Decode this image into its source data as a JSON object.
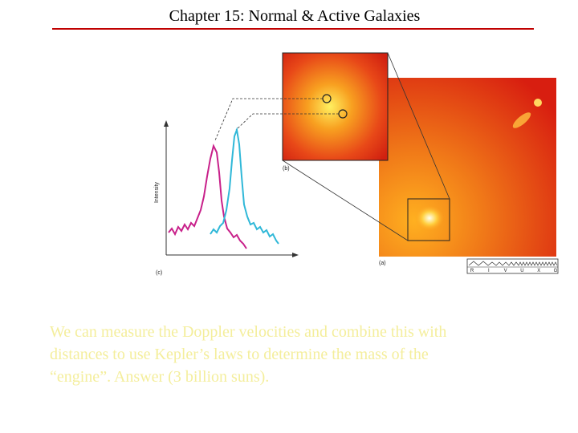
{
  "title": "Chapter 15: Normal & Active Galaxies",
  "figure": {
    "axis_label": "Intensity",
    "panel_c": "(c)",
    "panel_b": "(b)",
    "panel_a": "(a)",
    "spectrum_bands": [
      "R",
      "I",
      "V",
      "U",
      "X",
      "G"
    ]
  },
  "body": {
    "lines": [
      "We can measure the Doppler velocities and combine this with",
      "distances to use Kepler’s laws to determine the mass of the",
      "“engine”. Answer (3 billion suns)."
    ]
  }
}
